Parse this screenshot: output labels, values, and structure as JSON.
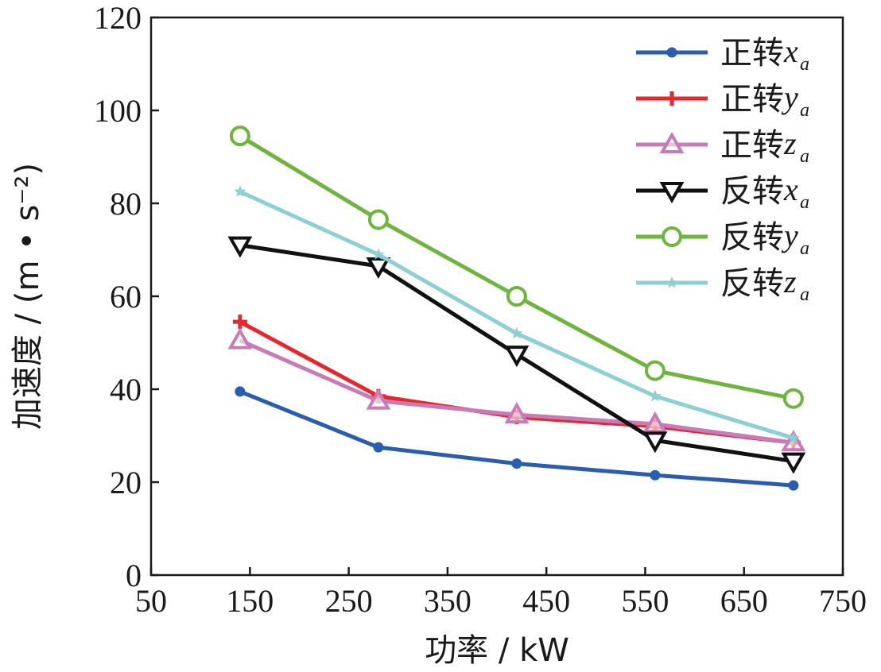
{
  "chart_data": {
    "type": "line",
    "title": "",
    "xlabel": "功率 / kW",
    "ylabel": "加速度 / (m • s⁻²)",
    "xlim": [
      50,
      750
    ],
    "ylim": [
      0,
      120
    ],
    "xticks": [
      50,
      150,
      250,
      350,
      450,
      550,
      650,
      750
    ],
    "yticks": [
      0,
      20,
      40,
      60,
      80,
      100,
      120
    ],
    "grid": false,
    "legend_position": "top-right",
    "x": [
      140,
      280,
      420,
      560,
      700
    ],
    "series": [
      {
        "name": "正转",
        "var": "x",
        "sub": "a",
        "color": "#2a5db0",
        "marker": "dot",
        "values": [
          39.5,
          27.5,
          24,
          21.5,
          19.3
        ]
      },
      {
        "name": "正转",
        "var": "y",
        "sub": "a",
        "color": "#e8262d",
        "marker": "plus",
        "values": [
          54.5,
          38.5,
          34,
          32,
          28.5
        ]
      },
      {
        "name": "正转",
        "var": "z",
        "sub": "a",
        "color": "#c77cb8",
        "marker": "triangle-up",
        "values": [
          50.5,
          37.5,
          34.5,
          32.5,
          28.5
        ]
      },
      {
        "name": "反转",
        "var": "x",
        "sub": "a",
        "color": "#111111",
        "marker": "triangle-down",
        "values": [
          71,
          66.5,
          47.5,
          29,
          24.5
        ]
      },
      {
        "name": "反转",
        "var": "y",
        "sub": "a",
        "color": "#6fb43f",
        "marker": "circle",
        "values": [
          94.5,
          76.5,
          60,
          44,
          38
        ]
      },
      {
        "name": "反转",
        "var": "z",
        "sub": "a",
        "color": "#8ccfd4",
        "marker": "star",
        "values": [
          82.5,
          69,
          52,
          38.5,
          29.5
        ]
      }
    ]
  }
}
